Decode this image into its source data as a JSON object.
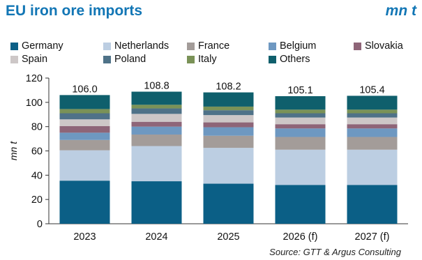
{
  "header": {
    "title": "EU iron ore imports",
    "unit": "mn t"
  },
  "source": "Source: GTT & Argus Consulting",
  "colors": {
    "Germany": "#0b5f86",
    "Netherlands": "#bccee2",
    "France": "#a39c99",
    "Belgium": "#6e98c1",
    "Slovakia": "#8e6578",
    "Spain": "#cdc7c7",
    "Poland": "#4f7288",
    "Italy": "#7a9257",
    "Others": "#0f5f6c"
  },
  "chart_data": {
    "type": "bar",
    "stacked": true,
    "title": "EU iron ore imports",
    "ylabel": "mn t",
    "xlabel": "",
    "ylim": [
      0,
      120
    ],
    "yticks": [
      0,
      20,
      40,
      60,
      80,
      100,
      120
    ],
    "grid": false,
    "legend_position": "top",
    "categories": [
      "2023",
      "2024",
      "2025",
      "2026 (f)",
      "2027 (f)"
    ],
    "totals": [
      "106.0",
      "108.8",
      "108.2",
      "105.1",
      "105.4"
    ],
    "series": [
      {
        "name": "Germany",
        "values": [
          35.5,
          35.0,
          33.0,
          32.0,
          32.0
        ]
      },
      {
        "name": "Netherlands",
        "values": [
          25.0,
          29.0,
          29.5,
          29.0,
          29.0
        ]
      },
      {
        "name": "France",
        "values": [
          8.5,
          9.5,
          10.0,
          10.5,
          10.5
        ]
      },
      {
        "name": "Belgium",
        "values": [
          6.0,
          6.5,
          7.0,
          7.0,
          7.0
        ]
      },
      {
        "name": "Slovakia",
        "values": [
          5.5,
          4.0,
          4.0,
          3.5,
          3.5
        ]
      },
      {
        "name": "Spain",
        "values": [
          5.5,
          6.5,
          6.0,
          5.5,
          5.5
        ]
      },
      {
        "name": "Poland",
        "values": [
          5.0,
          4.5,
          4.0,
          3.5,
          3.5
        ]
      },
      {
        "name": "Italy",
        "values": [
          3.5,
          3.0,
          3.0,
          3.0,
          3.0
        ]
      },
      {
        "name": "Others",
        "values": [
          11.5,
          10.8,
          11.7,
          11.1,
          11.4
        ]
      }
    ]
  }
}
